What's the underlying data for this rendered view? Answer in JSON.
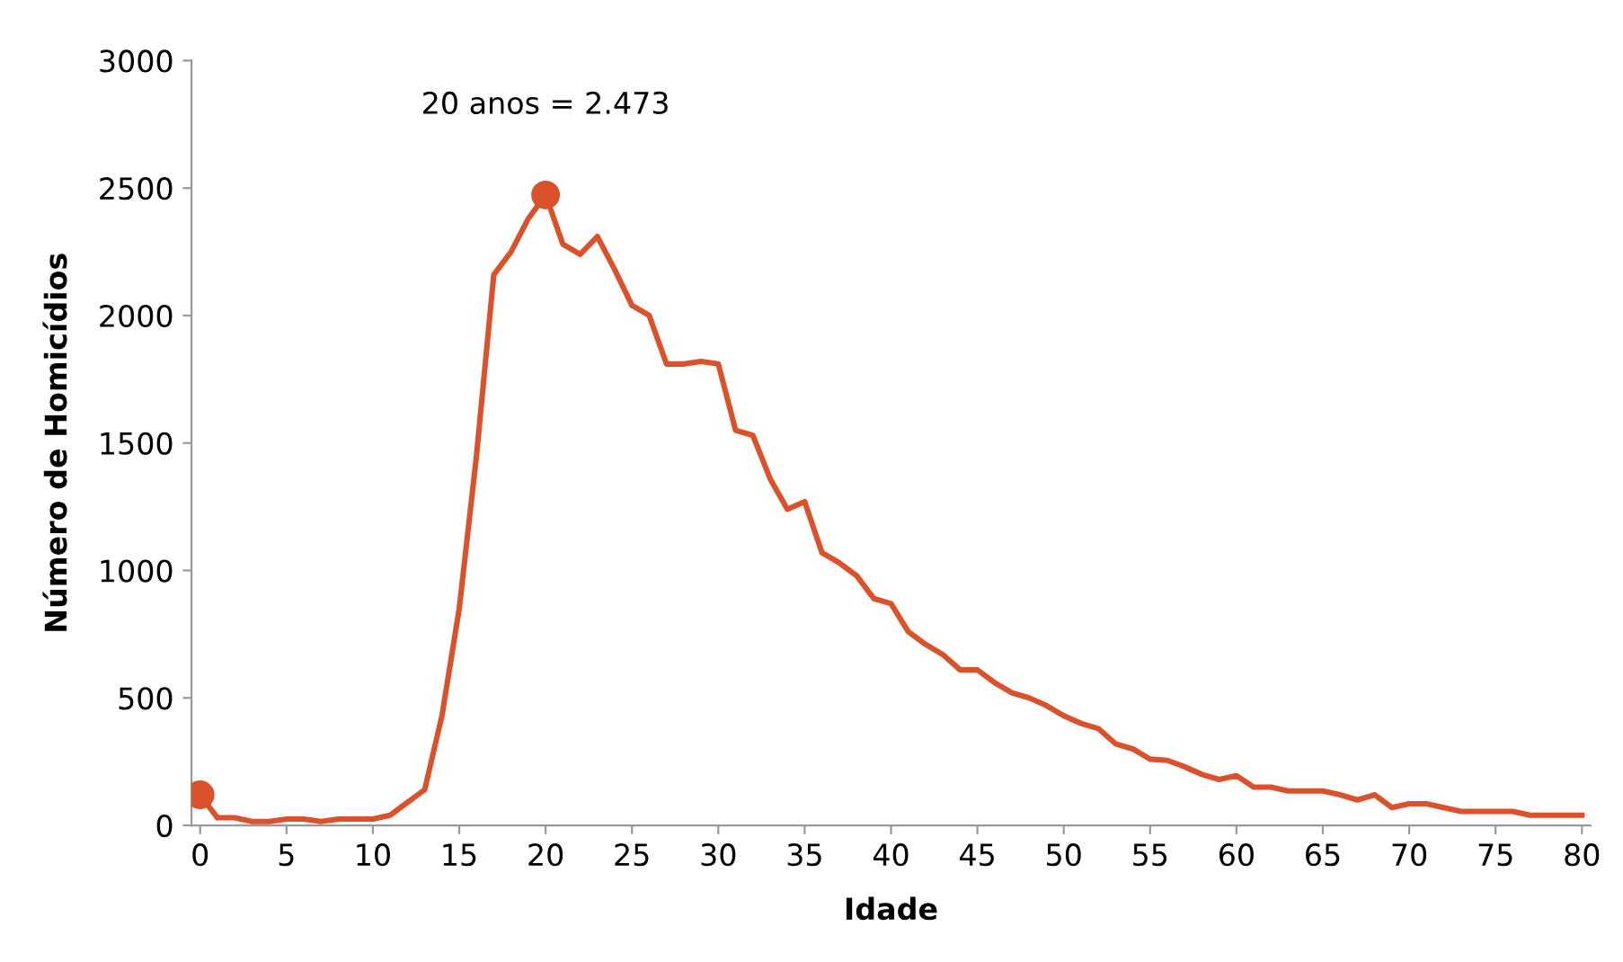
{
  "chart_data": {
    "type": "line",
    "xlabel": "Idade",
    "ylabel": "Número de Homicídios",
    "x": [
      0,
      1,
      2,
      3,
      4,
      5,
      6,
      7,
      8,
      9,
      10,
      11,
      12,
      13,
      14,
      15,
      16,
      17,
      18,
      19,
      20,
      21,
      22,
      23,
      24,
      25,
      26,
      27,
      28,
      29,
      30,
      31,
      32,
      33,
      34,
      35,
      36,
      37,
      38,
      39,
      40,
      41,
      42,
      43,
      44,
      45,
      46,
      47,
      48,
      49,
      50,
      51,
      52,
      53,
      54,
      55,
      56,
      57,
      58,
      59,
      60,
      61,
      62,
      63,
      64,
      65,
      66,
      67,
      68,
      69,
      70,
      71,
      72,
      73,
      74,
      75,
      76,
      77,
      78,
      79,
      80
    ],
    "series": [
      {
        "color": "#d9522b",
        "marker": "none",
        "values": [
          120,
          30,
          30,
          15,
          15,
          25,
          25,
          15,
          25,
          25,
          25,
          40,
          90,
          140,
          430,
          850,
          1450,
          2160,
          2250,
          2380,
          2473,
          2280,
          2240,
          2310,
          2180,
          2040,
          2000,
          1810,
          1810,
          1820,
          1810,
          1550,
          1530,
          1360,
          1240,
          1270,
          1070,
          1030,
          980,
          890,
          870,
          760,
          710,
          670,
          610,
          610,
          560,
          520,
          500,
          470,
          430,
          400,
          380,
          320,
          300,
          260,
          255,
          230,
          200,
          180,
          195,
          150,
          150,
          135,
          135,
          135,
          120,
          100,
          120,
          70,
          85,
          85,
          70,
          55,
          55,
          55,
          55,
          40,
          40,
          40,
          40
        ]
      },
      {
        "type": "scatter",
        "color": "#d9522b",
        "marker": "circle",
        "x": [
          0,
          20
        ],
        "values": [
          120,
          2473
        ]
      }
    ],
    "annotations": [
      {
        "text": "20 anos = 2.473",
        "x": 20,
        "y": 2473
      }
    ],
    "xlim": [
      -0.5,
      80.5
    ],
    "xticks": [
      0,
      5,
      10,
      15,
      20,
      25,
      30,
      35,
      40,
      45,
      50,
      55,
      60,
      65,
      70,
      75,
      80
    ],
    "ylim": [
      0,
      3000
    ],
    "yticks": [
      0,
      500,
      1000,
      1500,
      2000,
      2500,
      3000
    ],
    "grid": false,
    "legend": false
  }
}
